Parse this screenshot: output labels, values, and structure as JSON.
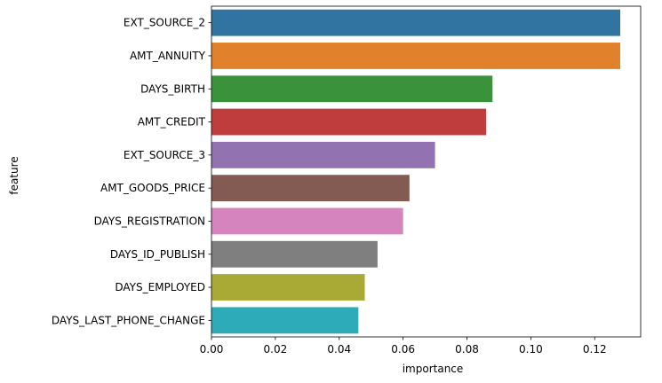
{
  "chart_data": {
    "type": "bar",
    "orientation": "horizontal",
    "xlabel": "importance",
    "ylabel": "feature",
    "xlim": [
      0,
      0.1344
    ],
    "xticks": [
      "0.00",
      "0.02",
      "0.04",
      "0.06",
      "0.08",
      "0.10",
      "0.12"
    ],
    "grid": false,
    "categories": [
      "EXT_SOURCE_2",
      "AMT_ANNUITY",
      "DAYS_BIRTH",
      "AMT_CREDIT",
      "EXT_SOURCE_3",
      "AMT_GOODS_PRICE",
      "DAYS_REGISTRATION",
      "DAYS_ID_PUBLISH",
      "DAYS_EMPLOYED",
      "DAYS_LAST_PHONE_CHANGE"
    ],
    "values": [
      0.128,
      0.128,
      0.088,
      0.086,
      0.07,
      0.062,
      0.06,
      0.052,
      0.048,
      0.046
    ],
    "colors": [
      "#3274a1",
      "#e1812c",
      "#3a923a",
      "#c03d3e",
      "#9372b2",
      "#845b53",
      "#d684bd",
      "#7f7f7f",
      "#a9aa35",
      "#2eabb8"
    ]
  }
}
